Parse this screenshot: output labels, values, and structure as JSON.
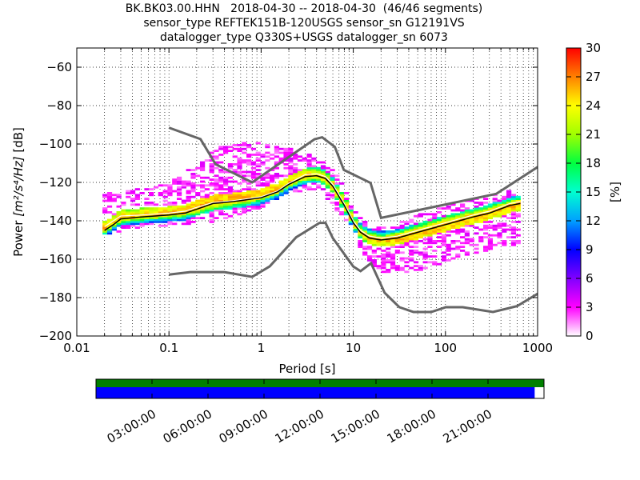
{
  "title_lines": [
    "BK.BK03.00.HHN   2018-04-30 -- 2018-04-30  (46/46 segments)",
    "sensor_type REFTEK151B-120USGS sensor_sn G12191VS",
    "datalogger_type Q330S+USGS datalogger_sn 6073"
  ],
  "chart_data": {
    "type": "heatmap",
    "xlabel": "Period [s]",
    "ylabel_prefix": "Power ",
    "ylabel_units": "[m²/s⁴/Hz]",
    "ylabel_suffix": " [dB]",
    "x_scale": "log",
    "xlim": [
      0.01,
      1000
    ],
    "ylim": [
      -200,
      -50
    ],
    "x_ticks": [
      0.01,
      0.1,
      1,
      10,
      100,
      1000
    ],
    "x_tick_labels": [
      "0.01",
      "0.1",
      "1",
      "10",
      "100",
      "1000"
    ],
    "y_ticks": [
      -200,
      -180,
      -160,
      -140,
      -120,
      -100,
      -80,
      -60
    ],
    "y_tick_labels": [
      "−200",
      "−180",
      "−160",
      "−140",
      "−120",
      "−100",
      "−80",
      "−60"
    ],
    "grid": "dotted",
    "colorbar": {
      "label": "[%]",
      "min": 0,
      "max": 30,
      "ticks": [
        0,
        3,
        6,
        9,
        12,
        15,
        18,
        21,
        24,
        27,
        30
      ],
      "tick_labels": [
        "0",
        "3",
        "6",
        "9",
        "12",
        "15",
        "18",
        "21",
        "24",
        "27",
        "30"
      ]
    },
    "high_noise_model": [
      [
        0.1,
        -91.5
      ],
      [
        0.22,
        -97.4
      ],
      [
        0.32,
        -110.5
      ],
      [
        0.8,
        -120
      ],
      [
        3.8,
        -97.5
      ],
      [
        4.6,
        -96.5
      ],
      [
        6.3,
        -101.5
      ],
      [
        7.9,
        -113.5
      ],
      [
        15.4,
        -120.3
      ],
      [
        20,
        -138.5
      ],
      [
        354.8,
        -126
      ],
      [
        1000,
        -112
      ]
    ],
    "low_noise_model": [
      [
        0.1,
        -168
      ],
      [
        0.17,
        -166.7
      ],
      [
        0.4,
        -166.7
      ],
      [
        0.8,
        -169.2
      ],
      [
        1.24,
        -163.7
      ],
      [
        2.4,
        -148.6
      ],
      [
        4.3,
        -141.1
      ],
      [
        5,
        -141.1
      ],
      [
        6,
        -149
      ],
      [
        10,
        -163.8
      ],
      [
        12,
        -166.2
      ],
      [
        15.6,
        -162.1
      ],
      [
        21.9,
        -177.5
      ],
      [
        31.6,
        -185
      ],
      [
        45,
        -187.5
      ],
      [
        70,
        -187.5
      ],
      [
        101,
        -185
      ],
      [
        154,
        -185
      ],
      [
        328,
        -187.5
      ],
      [
        600,
        -184.4
      ],
      [
        1000,
        -178
      ]
    ],
    "mode_curve": [
      [
        0.02,
        -145
      ],
      [
        0.025,
        -142
      ],
      [
        0.03,
        -139
      ],
      [
        0.05,
        -138
      ],
      [
        0.1,
        -137
      ],
      [
        0.15,
        -136
      ],
      [
        0.2,
        -134
      ],
      [
        0.3,
        -131
      ],
      [
        0.5,
        -130
      ],
      [
        1,
        -128
      ],
      [
        1.5,
        -125
      ],
      [
        2,
        -121
      ],
      [
        3,
        -117
      ],
      [
        4,
        -116.5
      ],
      [
        5,
        -118
      ],
      [
        6,
        -122
      ],
      [
        8,
        -132
      ],
      [
        10,
        -141
      ],
      [
        12,
        -146
      ],
      [
        15,
        -149
      ],
      [
        20,
        -150
      ],
      [
        30,
        -149
      ],
      [
        50,
        -146
      ],
      [
        100,
        -142
      ],
      [
        200,
        -138
      ],
      [
        300,
        -136
      ],
      [
        500,
        -132
      ],
      [
        650,
        -131
      ]
    ],
    "mean_curve": [
      [
        0.02,
        -143
      ],
      [
        0.025,
        -140
      ],
      [
        0.03,
        -137.5
      ],
      [
        0.05,
        -137
      ],
      [
        0.1,
        -136
      ],
      [
        0.15,
        -135
      ],
      [
        0.2,
        -133
      ],
      [
        0.3,
        -130.5
      ],
      [
        0.5,
        -129.5
      ],
      [
        1,
        -127.5
      ],
      [
        1.5,
        -124.5
      ],
      [
        2,
        -120.5
      ],
      [
        3,
        -116
      ],
      [
        4,
        -115.5
      ],
      [
        5,
        -117
      ],
      [
        6,
        -121
      ],
      [
        8,
        -131
      ],
      [
        10,
        -140
      ],
      [
        12,
        -145
      ],
      [
        15,
        -148
      ],
      [
        20,
        -149
      ],
      [
        30,
        -148
      ],
      [
        50,
        -145
      ],
      [
        100,
        -141
      ],
      [
        200,
        -137
      ],
      [
        300,
        -135
      ],
      [
        500,
        -131
      ],
      [
        650,
        -130
      ]
    ],
    "upper_scatter_envelope": [
      [
        0.03,
        -126
      ],
      [
        0.1,
        -122
      ],
      [
        0.22,
        -110
      ],
      [
        0.35,
        -103
      ],
      [
        0.7,
        -100
      ],
      [
        1.5,
        -102
      ],
      [
        3,
        -106
      ],
      [
        5,
        -110
      ],
      [
        8,
        -122
      ],
      [
        12,
        -140
      ],
      [
        20,
        -145
      ],
      [
        100,
        -133
      ],
      [
        600,
        -125
      ]
    ],
    "lower_scatter_envelope": [
      [
        0.02,
        -147
      ],
      [
        0.05,
        -143
      ],
      [
        0.1,
        -142
      ],
      [
        0.3,
        -140
      ],
      [
        1,
        -133
      ],
      [
        2,
        -125
      ],
      [
        4,
        -123
      ],
      [
        8,
        -138
      ],
      [
        15,
        -162
      ],
      [
        25,
        -168
      ],
      [
        60,
        -165
      ],
      [
        150,
        -158
      ],
      [
        600,
        -152
      ]
    ],
    "timeline": {
      "tick_labels": [
        "03:00:00",
        "06:00:00",
        "09:00:00",
        "12:00:00",
        "15:00:00",
        "18:00:00",
        "21:00:00"
      ],
      "tick_hours": [
        3,
        6,
        9,
        12,
        15,
        18,
        21
      ],
      "data_coverage_end_hour": 23.5,
      "psd_coverage_end_hour": 23.5,
      "data_bar_color": "#008000",
      "psd_bar_color": "#0000ff"
    },
    "noise_model_color": "#666666"
  }
}
